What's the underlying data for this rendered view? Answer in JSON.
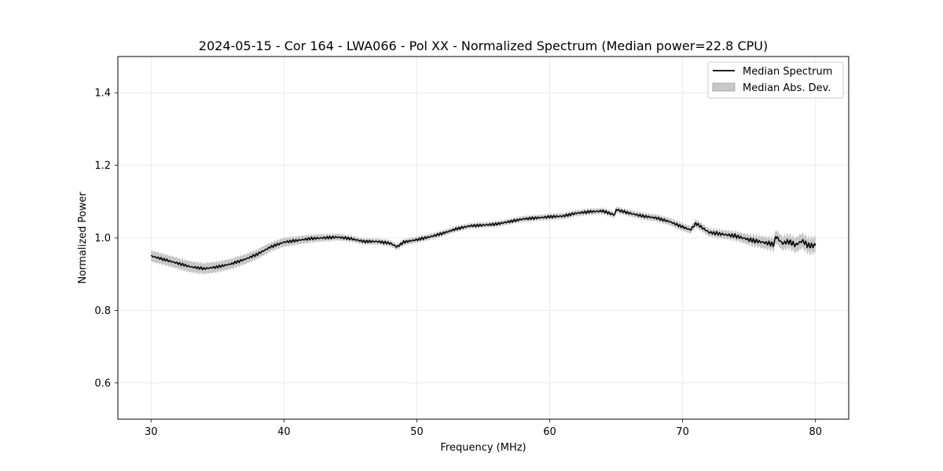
{
  "chart_data": {
    "type": "line",
    "title": "2024-05-15 - Cor 164 - LWA066 - Pol XX - Normalized Spectrum (Median power=22.8 CPU)",
    "xlabel": "Frequency (MHz)",
    "ylabel": "Normalized Power",
    "xlim": [
      27.5,
      82.5
    ],
    "ylim": [
      0.5,
      1.5
    ],
    "xticks": [
      30,
      40,
      50,
      60,
      70,
      80
    ],
    "xtick_labels": [
      "30",
      "40",
      "50",
      "60",
      "70",
      "80"
    ],
    "yticks": [
      0.6,
      0.8,
      1.0,
      1.2,
      1.4
    ],
    "ytick_labels": [
      "0.6",
      "0.8",
      "1.0",
      "1.2",
      "1.4"
    ],
    "grid": true,
    "legend_position": "top-right",
    "series": [
      {
        "name": "Median Spectrum",
        "color": "#000000",
        "x": [
          30,
          31,
          32,
          33,
          34,
          35,
          36,
          37,
          38,
          39,
          40,
          41,
          42,
          43,
          44,
          45,
          46,
          47,
          48,
          48.5,
          49,
          50,
          51,
          52,
          53,
          54,
          55,
          56,
          57,
          58,
          59,
          60,
          61,
          62,
          63,
          64,
          64.9,
          65,
          66,
          67,
          68,
          69,
          70,
          70.6,
          71,
          72,
          73,
          74,
          75,
          76,
          76.9,
          77,
          77.5,
          78,
          78.5,
          79,
          79.5,
          80
        ],
        "values": [
          0.95,
          0.94,
          0.93,
          0.92,
          0.915,
          0.92,
          0.928,
          0.94,
          0.955,
          0.975,
          0.988,
          0.993,
          0.998,
          1.0,
          1.002,
          0.998,
          0.99,
          0.99,
          0.985,
          0.975,
          0.988,
          0.995,
          1.003,
          1.013,
          1.025,
          1.033,
          1.035,
          1.038,
          1.045,
          1.052,
          1.055,
          1.058,
          1.06,
          1.068,
          1.072,
          1.074,
          1.063,
          1.078,
          1.068,
          1.06,
          1.055,
          1.045,
          1.03,
          1.022,
          1.04,
          1.015,
          1.01,
          1.005,
          0.995,
          0.988,
          0.982,
          1.005,
          0.985,
          0.99,
          0.98,
          0.992,
          0.978,
          0.98
        ]
      }
    ],
    "band": {
      "name": "Median Abs. Dev.",
      "color": "#c8c8c8",
      "x": [
        30,
        33,
        36,
        40,
        45,
        50,
        55,
        60,
        65,
        70,
        74,
        77,
        80
      ],
      "halfwidth": [
        0.015,
        0.015,
        0.014,
        0.012,
        0.008,
        0.008,
        0.007,
        0.008,
        0.008,
        0.01,
        0.012,
        0.018,
        0.022
      ]
    },
    "legend": [
      {
        "label": "Median Spectrum",
        "kind": "line",
        "color": "#000000"
      },
      {
        "label": "Median Abs. Dev.",
        "kind": "patch",
        "color": "#c8c8c8"
      }
    ]
  }
}
